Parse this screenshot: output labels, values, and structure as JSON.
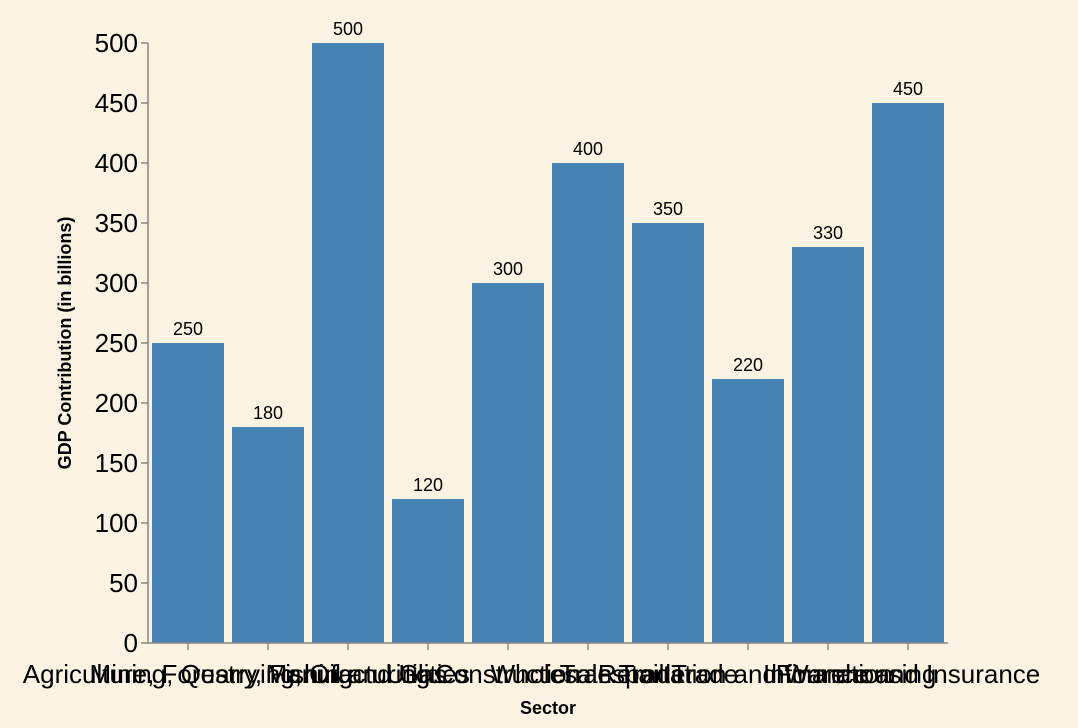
{
  "chart_data": {
    "type": "bar",
    "categories": [
      "Agriculture, Forestry, Fishing",
      "Mining, Quarrying, Oil and Gas",
      "Manufacturing",
      "Utilities",
      "Construction",
      "Wholesale Trade",
      "Retail Trade",
      "Transportation and Warehousing",
      "Information",
      "Finance and Insurance"
    ],
    "values": [
      250,
      180,
      500,
      120,
      300,
      400,
      350,
      220,
      330,
      450
    ],
    "xlabel": "Sector",
    "ylabel": "GDP Contribution (in billions)",
    "ylim": [
      0,
      500
    ],
    "yticks": [
      0,
      50,
      100,
      150,
      200,
      250,
      300,
      350,
      400,
      450,
      500
    ],
    "grid": false,
    "bar_color": "#4682b4",
    "background": "#fdf3e3"
  }
}
